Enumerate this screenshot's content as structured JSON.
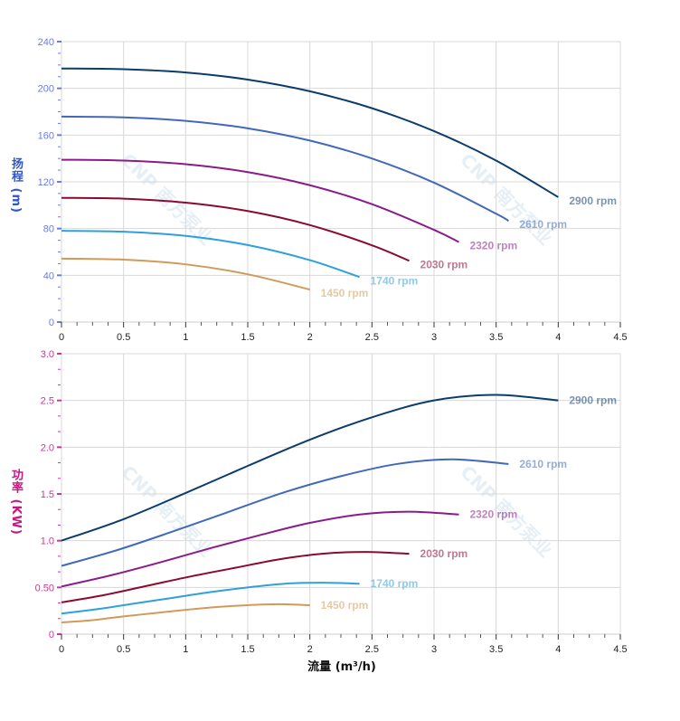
{
  "watermark": "CNP 南方泵业",
  "chart_data": [
    {
      "type": "line",
      "ylabel": "扬程 (m)",
      "ylabel_color": "#3355cc",
      "ytick_color": "#6a7ce0",
      "xlim": [
        0,
        4.5
      ],
      "ylim": [
        0,
        240
      ],
      "xticks": [
        "0",
        "0.5",
        "1",
        "1.5",
        "2",
        "2.5",
        "3",
        "3.5",
        "4",
        "4.5"
      ],
      "yticks": [
        "0",
        "40",
        "80",
        "120",
        "160",
        "200",
        "240"
      ],
      "grid": true,
      "series": [
        {
          "name": "2900 rpm",
          "color": "#0b3c6e",
          "x": [
            0,
            0.5,
            1,
            1.5,
            2,
            2.5,
            3,
            3.5,
            4
          ],
          "y": [
            217,
            216.4,
            213.6,
            207.5,
            197.5,
            183.0,
            163.4,
            138.2,
            106.9
          ]
        },
        {
          "name": "2610 rpm",
          "color": "#4169b8",
          "x": [
            0,
            0.5,
            1,
            1.5,
            2,
            2.5,
            3,
            3.5,
            3.6
          ],
          "y": [
            175.8,
            175.2,
            172.2,
            165.8,
            155.3,
            140.0,
            119.3,
            92.7,
            86.6
          ]
        },
        {
          "name": "2320 rpm",
          "color": "#8b1a8b",
          "x": [
            0,
            0.5,
            1,
            1.5,
            2,
            2.5,
            3,
            3.2
          ],
          "y": [
            138.9,
            138.2,
            135.1,
            128.3,
            117.1,
            100.9,
            78.9,
            68.4
          ]
        },
        {
          "name": "2030 rpm",
          "color": "#8b0a30",
          "x": [
            0,
            0.5,
            1,
            1.5,
            2,
            2.5,
            2.8
          ],
          "y": [
            106.3,
            105.6,
            102.2,
            95.0,
            83.0,
            65.7,
            52.4
          ]
        },
        {
          "name": "1740 rpm",
          "color": "#2fa0dc",
          "x": [
            0,
            0.5,
            1,
            1.5,
            2,
            2.4
          ],
          "y": [
            78.1,
            77.3,
            73.7,
            65.9,
            53.0,
            38.5
          ]
        },
        {
          "name": "1450 rpm",
          "color": "#d19a5a",
          "x": [
            0,
            0.5,
            1,
            1.5,
            2
          ],
          "y": [
            54.3,
            53.4,
            49.4,
            40.9,
            27.8
          ]
        }
      ]
    },
    {
      "type": "line",
      "xlabel": "流量 (m³/h)",
      "ylabel": "功率 (KW)",
      "ylabel_color": "#c8177f",
      "ytick_color": "#d0359a",
      "xlim": [
        0,
        4.5
      ],
      "ylim": [
        0,
        3.0
      ],
      "xticks": [
        "0",
        "0.5",
        "1",
        "1.5",
        "2",
        "2.5",
        "3",
        "3.5",
        "4",
        "4.5"
      ],
      "yticks": [
        "0",
        "0.50",
        "1.0",
        "1.5",
        "2.0",
        "2.5",
        "3.0"
      ],
      "grid": true,
      "series": [
        {
          "name": "2900 rpm",
          "color": "#0b3c6e",
          "x": [
            0,
            0.5,
            1,
            1.5,
            2,
            2.5,
            3,
            3.5,
            4
          ],
          "y": [
            1.0,
            1.23,
            1.51,
            1.8,
            2.08,
            2.32,
            2.5,
            2.56,
            2.5
          ]
        },
        {
          "name": "2610 rpm",
          "color": "#4169b8",
          "x": [
            0,
            0.45,
            0.9,
            1.35,
            1.8,
            2.25,
            2.7,
            3.15,
            3.6
          ],
          "y": [
            0.73,
            0.9,
            1.1,
            1.31,
            1.52,
            1.69,
            1.82,
            1.87,
            1.82
          ]
        },
        {
          "name": "2320 rpm",
          "color": "#8b1a8b",
          "x": [
            0,
            0.4,
            0.8,
            1.2,
            1.6,
            2.0,
            2.4,
            2.8,
            3.2
          ],
          "y": [
            0.51,
            0.63,
            0.77,
            0.92,
            1.06,
            1.19,
            1.28,
            1.31,
            1.28
          ]
        },
        {
          "name": "2030 rpm",
          "color": "#8b0a30",
          "x": [
            0,
            0.35,
            0.7,
            1.05,
            1.4,
            1.75,
            2.1,
            2.45,
            2.8
          ],
          "y": [
            0.34,
            0.42,
            0.52,
            0.62,
            0.71,
            0.8,
            0.86,
            0.88,
            0.86
          ]
        },
        {
          "name": "1740 rpm",
          "color": "#2fa0dc",
          "x": [
            0,
            0.3,
            0.6,
            0.9,
            1.2,
            1.5,
            1.8,
            2.1,
            2.4
          ],
          "y": [
            0.22,
            0.27,
            0.33,
            0.39,
            0.45,
            0.5,
            0.54,
            0.55,
            0.54
          ]
        },
        {
          "name": "1450 rpm",
          "color": "#d19a5a",
          "x": [
            0,
            0.25,
            0.5,
            0.75,
            1.0,
            1.25,
            1.5,
            1.75,
            2.0
          ],
          "y": [
            0.125,
            0.15,
            0.19,
            0.225,
            0.26,
            0.29,
            0.31,
            0.32,
            0.31
          ]
        }
      ]
    }
  ]
}
